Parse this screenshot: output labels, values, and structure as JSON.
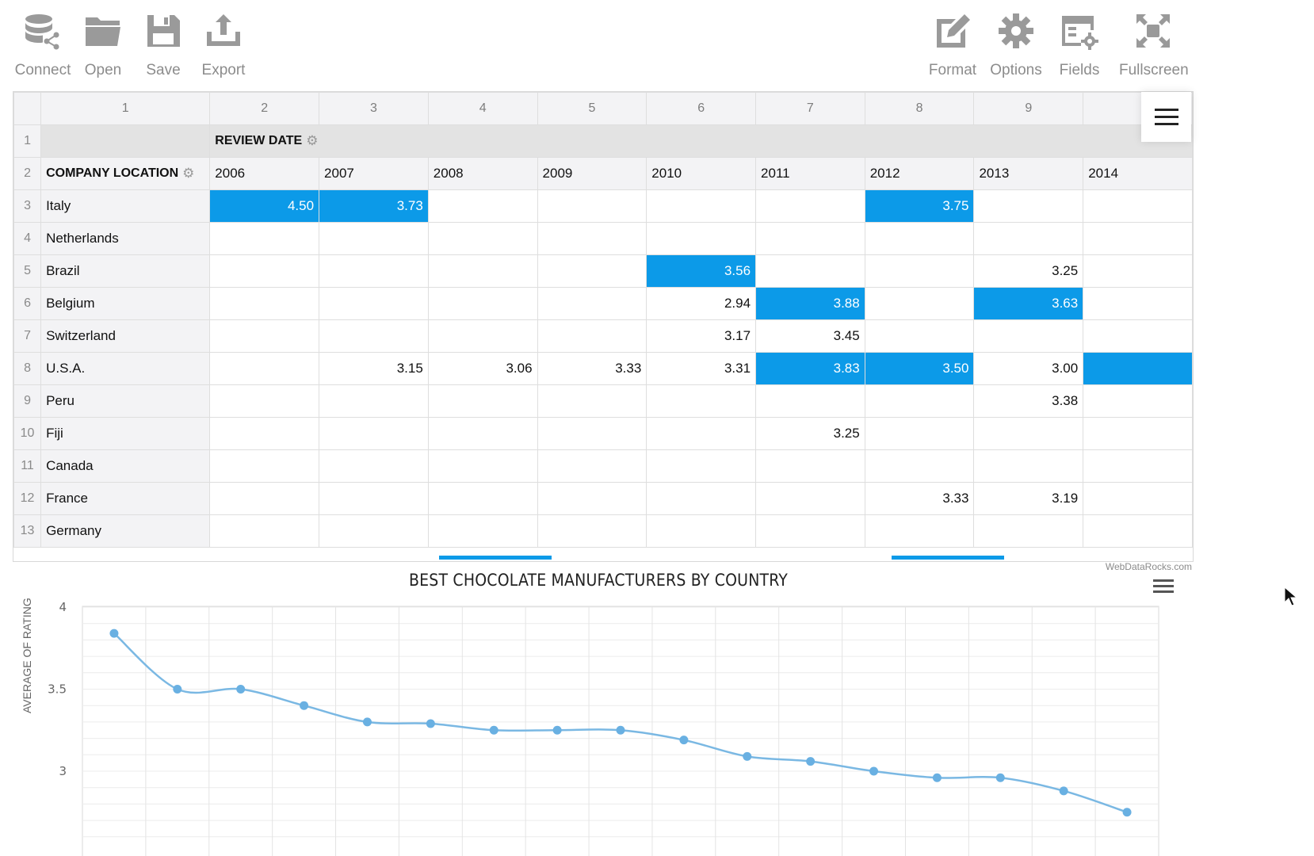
{
  "toolbar": {
    "left": [
      {
        "label": "Connect",
        "icon": "database-icon"
      },
      {
        "label": "Open",
        "icon": "folder-icon"
      },
      {
        "label": "Save",
        "icon": "floppy-icon"
      },
      {
        "label": "Export",
        "icon": "export-icon"
      }
    ],
    "right": [
      {
        "label": "Format",
        "icon": "pencil-icon"
      },
      {
        "label": "Options",
        "icon": "gear-icon"
      },
      {
        "label": "Fields",
        "icon": "fields-icon"
      },
      {
        "label": "Fullscreen",
        "icon": "fullscreen-icon"
      }
    ]
  },
  "grid": {
    "column_numbers": [
      "1",
      "2",
      "3",
      "4",
      "5",
      "6",
      "7",
      "8",
      "9"
    ],
    "filter_label": "REVIEW DATE",
    "row_header_label": "COMPANY LOCATION",
    "years": [
      "2006",
      "2007",
      "2008",
      "2009",
      "2010",
      "2011",
      "2012",
      "2013",
      "2014"
    ],
    "rows": [
      {
        "num": "3",
        "name": "Italy",
        "cells": [
          "4.50",
          "3.73",
          "",
          "",
          "",
          "",
          "3.75",
          "",
          ""
        ],
        "hl": [
          0,
          1,
          6
        ]
      },
      {
        "num": "4",
        "name": "Netherlands",
        "cells": [
          "",
          "",
          "",
          "",
          "",
          "",
          "",
          "",
          ""
        ],
        "hl": []
      },
      {
        "num": "5",
        "name": "Brazil",
        "cells": [
          "",
          "",
          "",
          "",
          "3.56",
          "",
          "",
          "3.25",
          ""
        ],
        "hl": [
          4
        ]
      },
      {
        "num": "6",
        "name": "Belgium",
        "cells": [
          "",
          "",
          "",
          "",
          "2.94",
          "3.88",
          "",
          "3.63",
          ""
        ],
        "hl": [
          5,
          7
        ]
      },
      {
        "num": "7",
        "name": "Switzerland",
        "cells": [
          "",
          "",
          "",
          "",
          "3.17",
          "3.45",
          "",
          "",
          ""
        ],
        "hl": []
      },
      {
        "num": "8",
        "name": "U.S.A.",
        "cells": [
          "",
          "3.15",
          "3.06",
          "3.33",
          "3.31",
          "3.83",
          "3.50",
          "3.00",
          ""
        ],
        "hl": [
          5,
          6,
          8
        ]
      },
      {
        "num": "9",
        "name": "Peru",
        "cells": [
          "",
          "",
          "",
          "",
          "",
          "",
          "",
          "3.38",
          ""
        ],
        "hl": []
      },
      {
        "num": "10",
        "name": "Fiji",
        "cells": [
          "",
          "",
          "",
          "",
          "",
          "3.25",
          "",
          "",
          ""
        ],
        "hl": []
      },
      {
        "num": "11",
        "name": "Canada",
        "cells": [
          "",
          "",
          "",
          "",
          "",
          "",
          "",
          "",
          ""
        ],
        "hl": []
      },
      {
        "num": "12",
        "name": "France",
        "cells": [
          "",
          "",
          "",
          "",
          "",
          "",
          "3.33",
          "3.19",
          ""
        ],
        "hl": []
      },
      {
        "num": "13",
        "name": "Germany",
        "cells": [
          "",
          "",
          "",
          "",
          "",
          "",
          "",
          "",
          ""
        ],
        "hl": []
      }
    ],
    "credit": "WebDataRocks.com"
  },
  "colors": {
    "highlight": "#0c9ae8",
    "line": "#7ab8e3",
    "point": "#69b0e2"
  },
  "chart_data": {
    "type": "line",
    "title": "BEST CHOCOLATE MANUFACTURERS BY COUNTRY",
    "ylabel": "AVERAGE OF RATING",
    "yticks": [
      4,
      3.5,
      3
    ],
    "ylim": [
      2.6,
      4
    ],
    "series": [
      {
        "values": [
          3.84,
          3.5,
          3.5,
          3.4,
          3.3,
          3.29,
          3.25,
          3.25,
          3.25,
          3.19,
          3.09,
          3.06,
          3.0,
          2.96,
          2.96,
          2.88,
          2.75
        ]
      }
    ]
  }
}
